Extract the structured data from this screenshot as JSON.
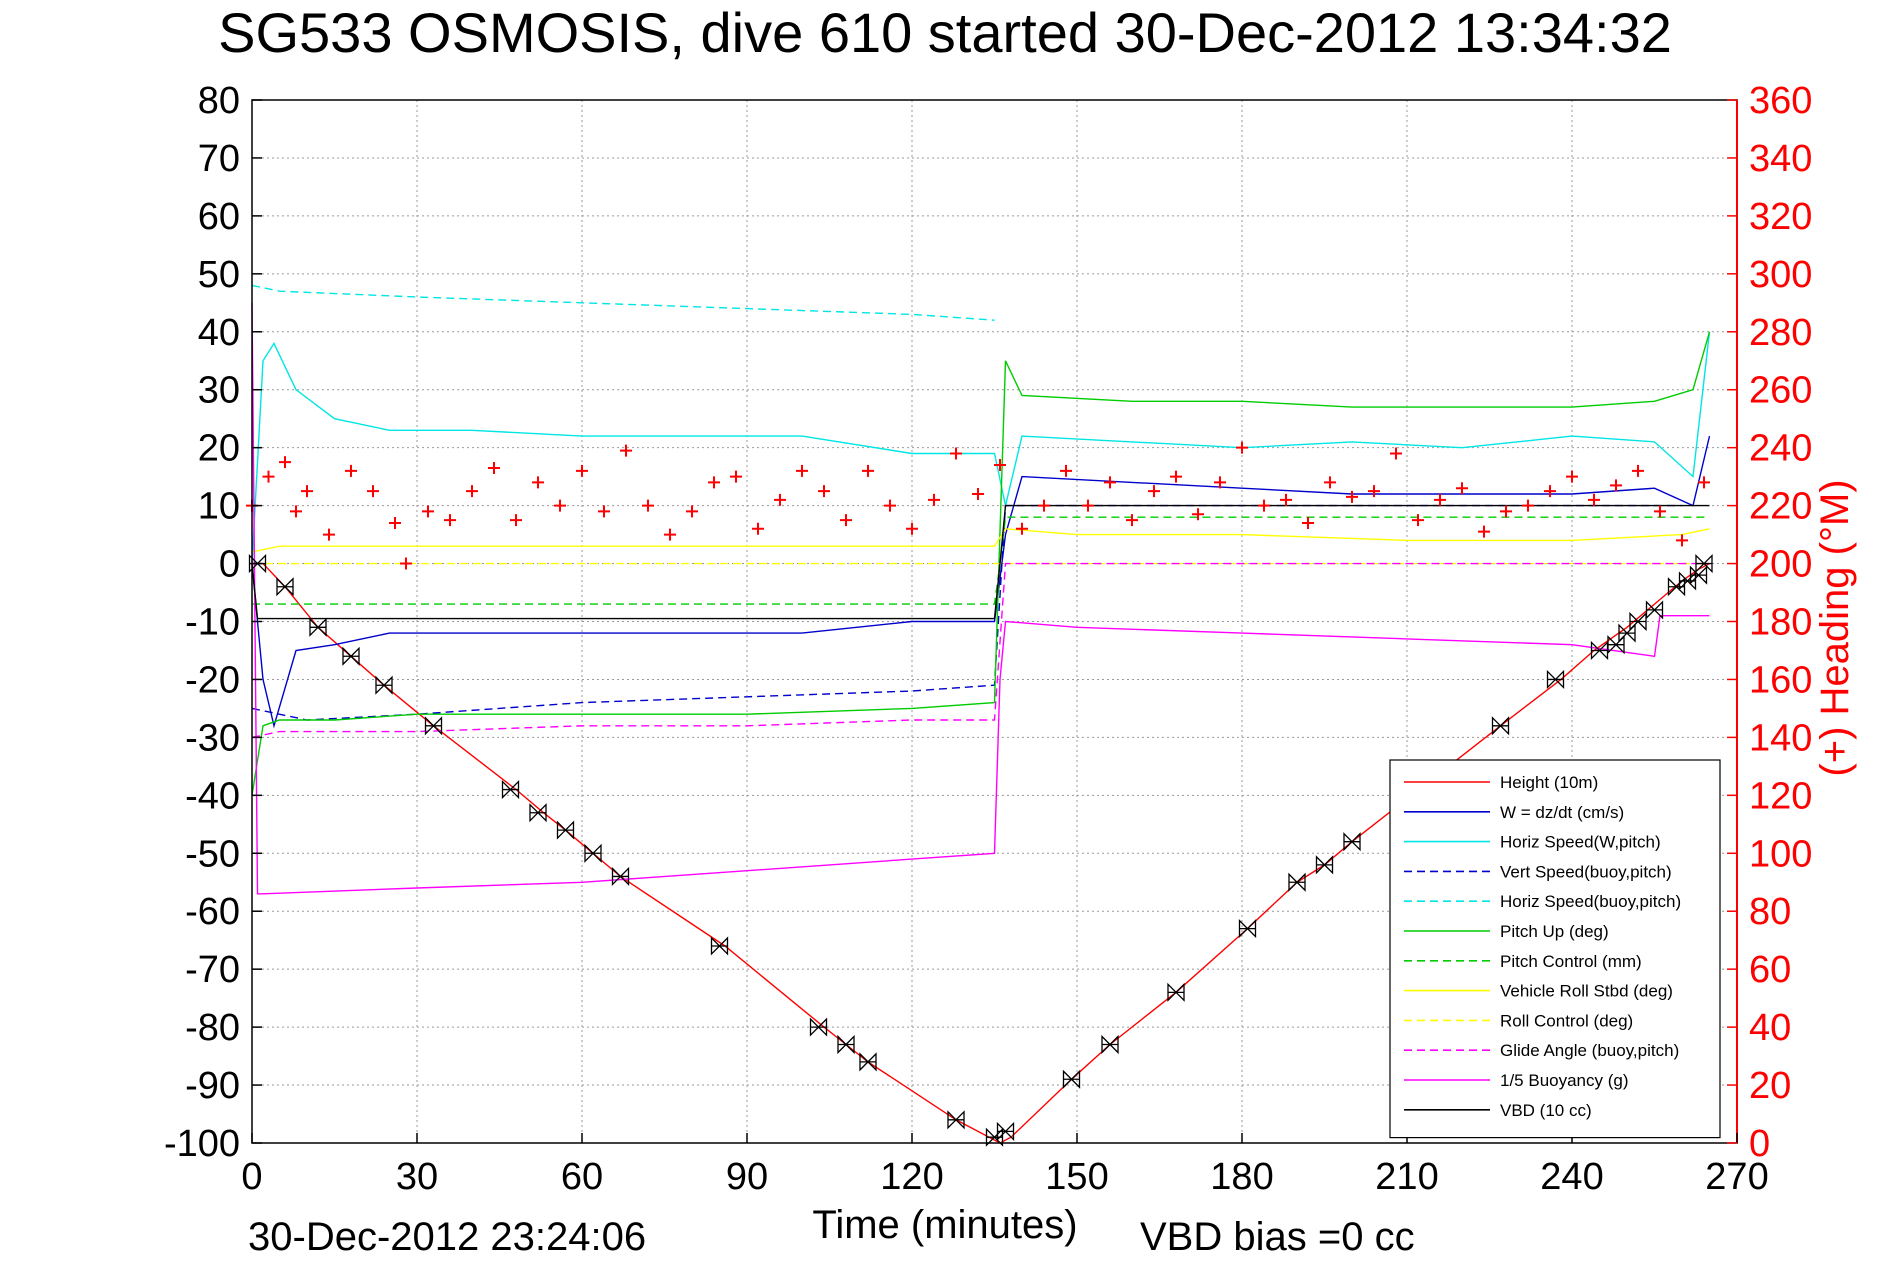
{
  "chart_data": {
    "type": "line",
    "title": "SG533 OSMOSIS, dive 610 started 30-Dec-2012 13:34:32",
    "xlabel": "Time (minutes)",
    "ylabel_right": "(+) Heading (°M)",
    "xlim": [
      0,
      270
    ],
    "ylim": [
      -100,
      80
    ],
    "ylim_right": [
      0,
      360
    ],
    "x_ticks": [
      0,
      30,
      60,
      90,
      120,
      150,
      180,
      210,
      240,
      270
    ],
    "y_ticks": [
      80,
      70,
      60,
      50,
      40,
      30,
      20,
      10,
      0,
      -10,
      -20,
      -30,
      -40,
      -50,
      -60,
      -70,
      -80,
      -90,
      -100
    ],
    "y_right_ticks": [
      360,
      340,
      320,
      300,
      280,
      260,
      240,
      220,
      200,
      180,
      160,
      140,
      120,
      100,
      80,
      60,
      40,
      20,
      0
    ],
    "grid": true,
    "legend_position": "lower-right",
    "footer_left": "30-Dec-2012 23:24:06",
    "footer_right": "VBD bias =0 cc",
    "series": [
      {
        "name": "Height (10m)",
        "color": "#ff0000",
        "style": "solid",
        "x": [
          0,
          0.5,
          1,
          1.5,
          2,
          3,
          4,
          6,
          12,
          18,
          24,
          33,
          48,
          53,
          57,
          62,
          67,
          86,
          104,
          108,
          112,
          128,
          136,
          138,
          149,
          156,
          168,
          181,
          190,
          195,
          200,
          227,
          238,
          244,
          250,
          255,
          260,
          263,
          265
        ],
        "y": [
          0,
          0,
          0,
          0,
          0,
          -1,
          -2,
          -4,
          -11,
          -16,
          -21,
          -28,
          -39,
          -43,
          -46,
          -50,
          -54,
          -66,
          -80,
          -83,
          -86,
          -96,
          -100,
          -99,
          -89,
          -83,
          -74,
          -63,
          -55,
          -52,
          -48,
          -28,
          -20,
          -15,
          -11,
          -7,
          -3,
          -1,
          0
        ]
      },
      {
        "name": "W = dz/dt (cm/s)",
        "color": "#0000cc",
        "style": "solid",
        "x": [
          0,
          2,
          4,
          8,
          15,
          25,
          40,
          60,
          80,
          100,
          120,
          135,
          137,
          140,
          160,
          180,
          200,
          220,
          240,
          255,
          262,
          265
        ],
        "y": [
          0,
          -20,
          -28,
          -15,
          -14,
          -12,
          -12,
          -12,
          -12,
          -12,
          -10,
          -10,
          5,
          15,
          14,
          13,
          12,
          12,
          12,
          13,
          10,
          22
        ]
      },
      {
        "name": "Horiz Speed(W,pitch)",
        "color": "#00e5e5",
        "style": "solid",
        "x": [
          0,
          2,
          4,
          8,
          15,
          25,
          40,
          60,
          80,
          100,
          120,
          135,
          137,
          140,
          160,
          180,
          200,
          220,
          240,
          255,
          262,
          265
        ],
        "y": [
          0,
          35,
          38,
          30,
          25,
          23,
          23,
          22,
          22,
          22,
          19,
          19,
          10,
          22,
          21,
          20,
          21,
          20,
          22,
          21,
          15,
          40
        ]
      },
      {
        "name": "Vert Speed(buoy,pitch)",
        "color": "#0000cc",
        "style": "dashed",
        "x": [
          0,
          10,
          30,
          60,
          90,
          120,
          135,
          137,
          150,
          180,
          210,
          240,
          260
        ],
        "y": [
          -25,
          -27,
          -26,
          -24,
          -23,
          -22,
          -21,
          10,
          10,
          10,
          10,
          10,
          10
        ]
      },
      {
        "name": "Horiz Speed(buoy,pitch)",
        "color": "#00e5e5",
        "style": "dashed",
        "x": [
          0,
          5,
          30,
          60,
          90,
          120,
          135
        ],
        "y": [
          48,
          47,
          46,
          45,
          44,
          43,
          42
        ]
      },
      {
        "name": "Pitch Up (deg)",
        "color": "#00cc00",
        "style": "solid",
        "x": [
          0,
          2,
          5,
          15,
          30,
          60,
          90,
          120,
          135,
          137,
          140,
          160,
          180,
          200,
          220,
          240,
          255,
          262,
          265
        ],
        "y": [
          -40,
          -28,
          -27,
          -27,
          -26,
          -26,
          -26,
          -25,
          -24,
          35,
          29,
          28,
          28,
          27,
          27,
          27,
          28,
          30,
          40
        ]
      },
      {
        "name": "Pitch Control (mm)",
        "color": "#00cc00",
        "style": "dashed",
        "x": [
          0,
          3,
          135,
          136,
          137,
          265
        ],
        "y": [
          -7,
          -7,
          -7,
          0,
          8,
          8
        ]
      },
      {
        "name": "Vehicle Roll Stbd (deg)",
        "color": "#ffff00",
        "style": "solid",
        "x": [
          0,
          5,
          30,
          60,
          90,
          120,
          135,
          137,
          150,
          180,
          210,
          240,
          260,
          265
        ],
        "y": [
          2,
          3,
          3,
          3,
          3,
          3,
          3,
          6,
          5,
          5,
          4,
          4,
          5,
          6
        ]
      },
      {
        "name": "Roll Control (deg)",
        "color": "#ffff00",
        "style": "dashed",
        "x": [
          0,
          265
        ],
        "y": [
          0,
          0
        ]
      },
      {
        "name": "Glide Angle (buoy,pitch)",
        "color": "#ff00ff",
        "style": "dashed",
        "x": [
          0,
          5,
          30,
          60,
          90,
          120,
          135,
          137,
          265
        ],
        "y": [
          -30,
          -29,
          -29,
          -28,
          -28,
          -27,
          -27,
          0,
          0
        ]
      },
      {
        "name": "1/5 Buoyancy (g)",
        "color": "#ff00ff",
        "style": "solid",
        "x": [
          0,
          1,
          2,
          30,
          60,
          90,
          120,
          135,
          136,
          137,
          150,
          180,
          210,
          240,
          255,
          256,
          265
        ],
        "y": [
          45,
          -57,
          -57,
          -56,
          -55,
          -53,
          -51,
          -50,
          -20,
          -10,
          -11,
          -12,
          -13,
          -14,
          -16,
          -9,
          -9
        ]
      },
      {
        "name": "VBD (10 cc)",
        "color": "#000000",
        "style": "solid",
        "x": [
          0,
          1,
          135,
          136,
          137,
          265
        ],
        "y": [
          0,
          -9.5,
          -9.5,
          0,
          10,
          10
        ]
      }
    ],
    "heading_series": {
      "name": "Heading",
      "axis": "right",
      "color": "#ff0000",
      "marker": "+",
      "x": [
        0,
        3,
        6,
        8,
        10,
        14,
        18,
        22,
        26,
        28,
        32,
        36,
        40,
        44,
        48,
        52,
        56,
        60,
        64,
        68,
        72,
        76,
        80,
        84,
        88,
        92,
        96,
        100,
        104,
        108,
        112,
        116,
        120,
        124,
        128,
        132,
        136,
        140,
        144,
        148,
        152,
        156,
        160,
        164,
        168,
        172,
        176,
        180,
        184,
        188,
        192,
        196,
        200,
        204,
        208,
        212,
        216,
        220,
        224,
        228,
        232,
        236,
        240,
        244,
        248,
        252,
        256,
        260,
        264
      ],
      "y": [
        220,
        230,
        235,
        218,
        225,
        210,
        232,
        225,
        214,
        200,
        218,
        215,
        225,
        233,
        215,
        228,
        220,
        232,
        218,
        239,
        220,
        210,
        218,
        228,
        230,
        212,
        222,
        232,
        225,
        215,
        232,
        220,
        212,
        222,
        238,
        224,
        234,
        212,
        220,
        232,
        220,
        228,
        215,
        225,
        230,
        217,
        228,
        240,
        220,
        222,
        214,
        228,
        223,
        225,
        238,
        215,
        222,
        226,
        211,
        218,
        220,
        225,
        230,
        222,
        227,
        232,
        218,
        208,
        228
      ]
    },
    "markers": {
      "name": "Height samples",
      "color": "#000000",
      "x": [
        1,
        6,
        12,
        18,
        24,
        33,
        47,
        52,
        57,
        62,
        67,
        85,
        103,
        108,
        112,
        128,
        135,
        137,
        149,
        156,
        168,
        181,
        190,
        195,
        200,
        227,
        237,
        245,
        248,
        250,
        252,
        255,
        259,
        261,
        263,
        264
      ],
      "y": [
        0,
        -4,
        -11,
        -16,
        -21,
        -28,
        -39,
        -43,
        -46,
        -50,
        -54,
        -66,
        -80,
        -83,
        -86,
        -96,
        -99,
        -98,
        -89,
        -83,
        -74,
        -63,
        -55,
        -52,
        -48,
        -28,
        -20,
        -15,
        -14,
        -12,
        -10,
        -8,
        -4,
        -3,
        -2,
        0
      ]
    }
  }
}
